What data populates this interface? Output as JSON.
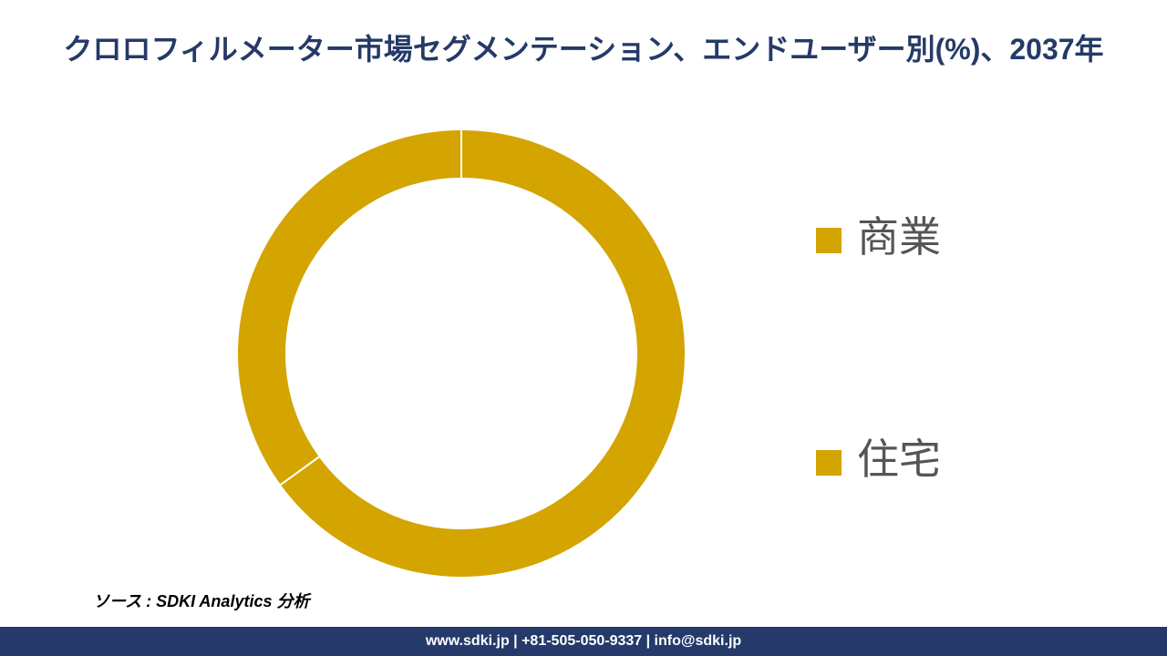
{
  "chart_data": {
    "type": "pie",
    "title": "クロロフィルメーター市場セグメンテーション、エンドユーザー別(%)、2037年",
    "categories": [
      "商業",
      "住宅"
    ],
    "values": [
      65,
      35
    ],
    "colors": [
      "#d4a400",
      "#d4a400"
    ],
    "donut": true,
    "legend": "right"
  },
  "source": "ソース : SDKI Analytics 分析",
  "footer": "www.sdki.jp | +81-505-050-9337 | info@sdki.jp"
}
